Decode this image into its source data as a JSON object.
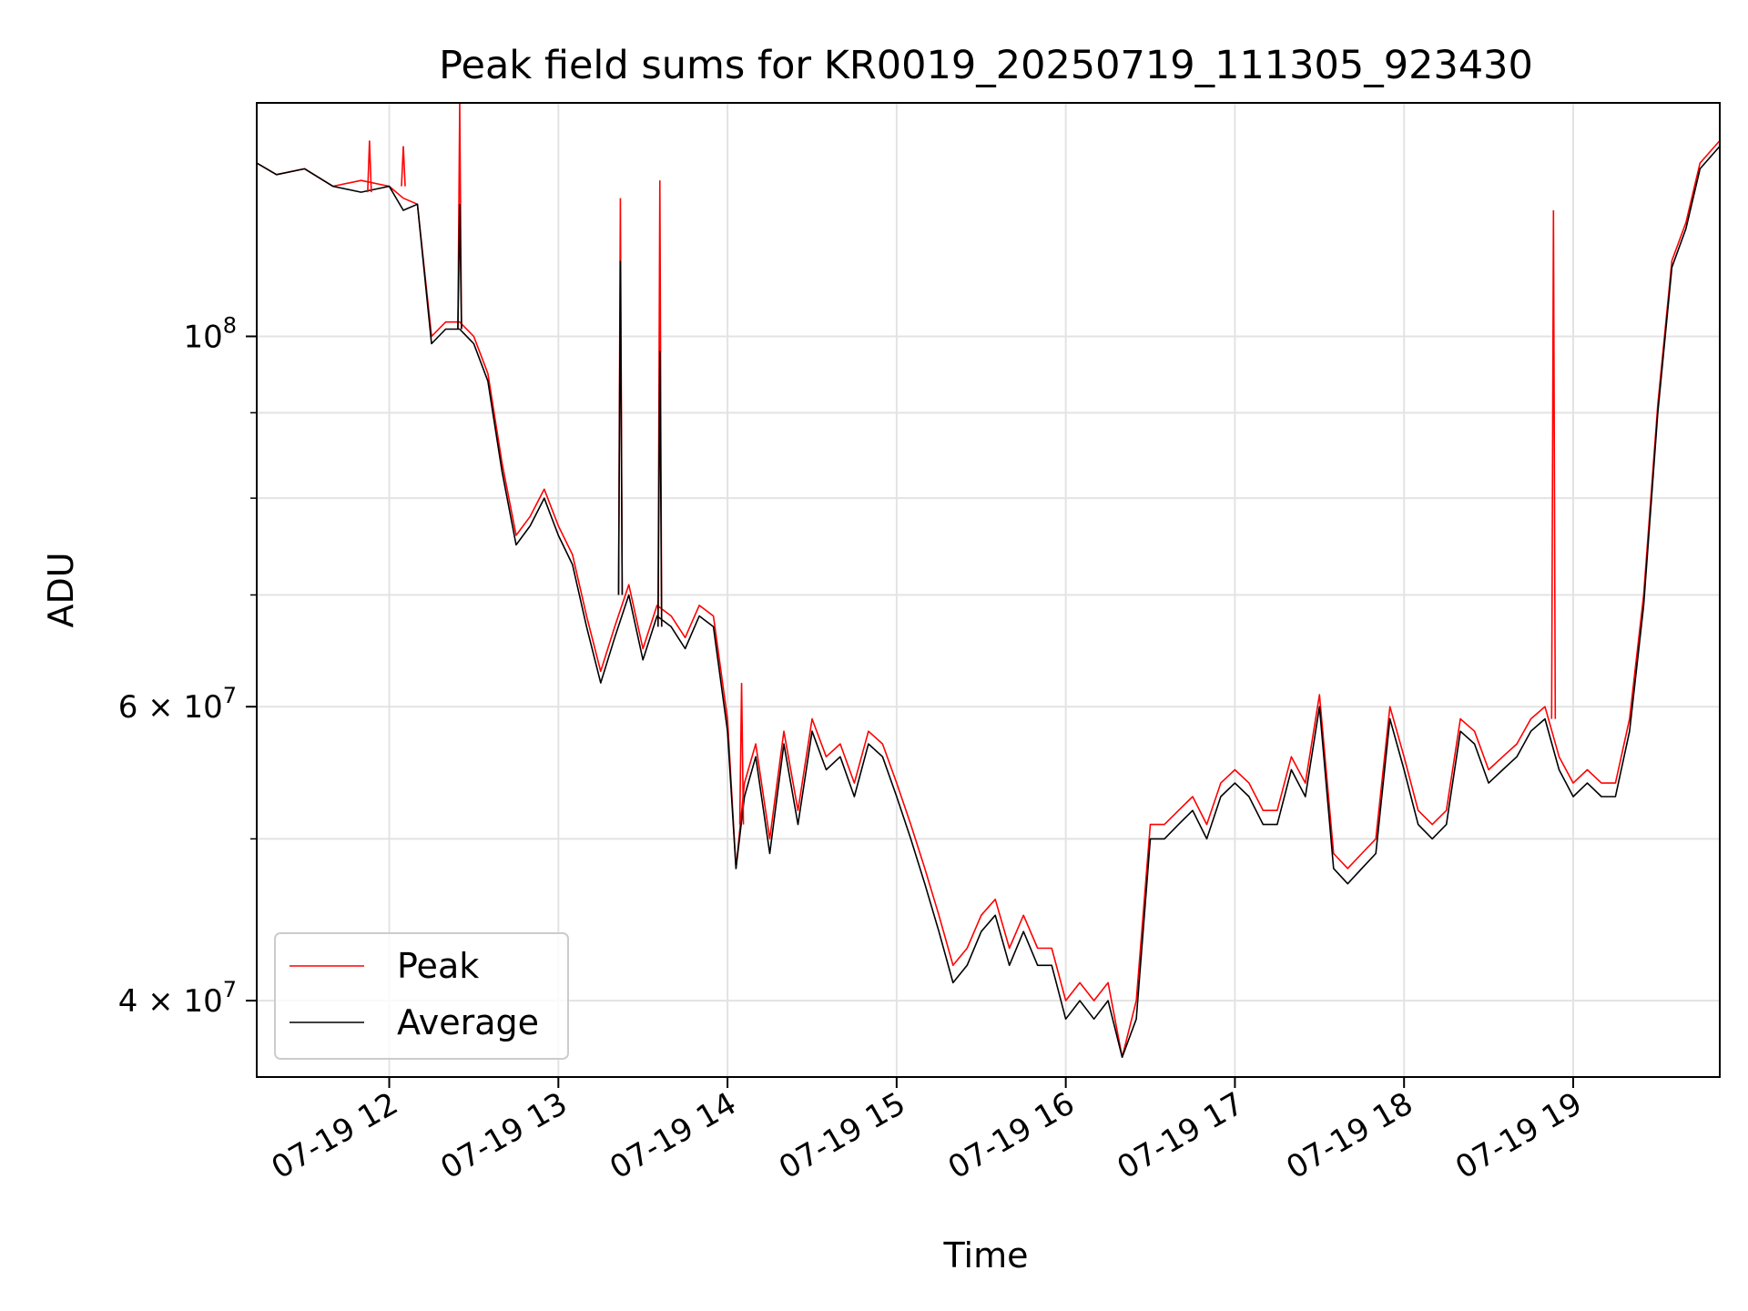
{
  "chart_data": {
    "type": "line",
    "title": "Peak field sums for KR0019_20250719_111305_923430",
    "xlabel": "Time",
    "ylabel": "ADU",
    "yscale": "log",
    "ylim": [
      36000000,
      138000000
    ],
    "xlim": [
      "07-19 11:13",
      "07-19 19:52"
    ],
    "grid": true,
    "legend_position": "lower-left",
    "x_ticks": [
      "07-19 12",
      "07-19 13",
      "07-19 14",
      "07-19 15",
      "07-19 16",
      "07-19 17",
      "07-19 18",
      "07-19 19"
    ],
    "y_ticks": [
      {
        "value": 100000000,
        "base": "10",
        "exp": "8"
      },
      {
        "value": 60000000,
        "base": "6 × 10",
        "exp": "7"
      },
      {
        "value": 40000000,
        "base": "4 × 10",
        "exp": "7"
      }
    ],
    "x": [
      "11:13",
      "11:20",
      "11:30",
      "11:40",
      "11:50",
      "12:00",
      "12:05",
      "12:10",
      "12:15",
      "12:20",
      "12:25",
      "12:30",
      "12:35",
      "12:40",
      "12:45",
      "12:50",
      "12:55",
      "13:00",
      "13:05",
      "13:10",
      "13:15",
      "13:20",
      "13:25",
      "13:30",
      "13:35",
      "13:40",
      "13:45",
      "13:50",
      "13:55",
      "14:00",
      "14:03",
      "14:06",
      "14:10",
      "14:15",
      "14:20",
      "14:25",
      "14:30",
      "14:35",
      "14:40",
      "14:45",
      "14:50",
      "14:55",
      "15:00",
      "15:05",
      "15:10",
      "15:15",
      "15:20",
      "15:25",
      "15:30",
      "15:35",
      "15:40",
      "15:45",
      "15:50",
      "15:55",
      "16:00",
      "16:05",
      "16:10",
      "16:15",
      "16:20",
      "16:25",
      "16:30",
      "16:35",
      "16:40",
      "16:45",
      "16:50",
      "16:55",
      "17:00",
      "17:05",
      "17:10",
      "17:15",
      "17:20",
      "17:25",
      "17:30",
      "17:35",
      "17:40",
      "17:45",
      "17:50",
      "17:55",
      "18:00",
      "18:05",
      "18:10",
      "18:15",
      "18:20",
      "18:25",
      "18:30",
      "18:35",
      "18:40",
      "18:45",
      "18:50",
      "18:55",
      "19:00",
      "19:05",
      "19:10",
      "19:15",
      "19:20",
      "19:25",
      "19:30",
      "19:35",
      "19:40",
      "19:45",
      "19:52"
    ],
    "series": [
      {
        "name": "Average",
        "color": "#000000",
        "values": [
          127000000,
          125000000,
          126000000,
          123000000,
          122000000,
          123000000,
          119000000,
          120000000,
          99000000,
          101000000,
          101000000,
          99000000,
          94000000,
          83000000,
          75000000,
          77000000,
          80000000,
          76000000,
          73000000,
          67000000,
          62000000,
          66000000,
          70000000,
          64000000,
          68000000,
          67000000,
          65000000,
          68000000,
          67000000,
          58000000,
          48000000,
          53000000,
          56000000,
          49000000,
          57000000,
          51000000,
          58000000,
          55000000,
          56000000,
          53000000,
          57000000,
          56000000,
          53000000,
          50000000,
          47000000,
          44000000,
          41000000,
          42000000,
          44000000,
          45000000,
          42000000,
          44000000,
          42000000,
          42000000,
          39000000,
          40000000,
          39000000,
          40000000,
          37000000,
          39000000,
          50000000,
          50000000,
          51000000,
          52000000,
          50000000,
          53000000,
          54000000,
          53000000,
          51000000,
          51000000,
          55000000,
          53000000,
          60000000,
          48000000,
          47000000,
          48000000,
          49000000,
          59000000,
          55000000,
          51000000,
          50000000,
          51000000,
          58000000,
          57000000,
          54000000,
          55000000,
          56000000,
          58000000,
          59000000,
          55000000,
          53000000,
          54000000,
          53000000,
          53000000,
          58000000,
          69000000,
          90000000,
          110000000,
          116000000,
          126000000,
          130000000
        ]
      },
      {
        "name": "Peak",
        "color": "#ff0000",
        "values": [
          127000000,
          125000000,
          126000000,
          123000000,
          124000000,
          123000000,
          121000000,
          120000000,
          100000000,
          102000000,
          102000000,
          100000000,
          95000000,
          84000000,
          76000000,
          78000000,
          81000000,
          77000000,
          74000000,
          68000000,
          63000000,
          67000000,
          71000000,
          65000000,
          69000000,
          68000000,
          66000000,
          69000000,
          68000000,
          59000000,
          48000000,
          54000000,
          57000000,
          50000000,
          58000000,
          52000000,
          59000000,
          56000000,
          57000000,
          54000000,
          58000000,
          57000000,
          54000000,
          51000000,
          48000000,
          45000000,
          42000000,
          43000000,
          45000000,
          46000000,
          43000000,
          45000000,
          43000000,
          43000000,
          40000000,
          41000000,
          40000000,
          41000000,
          37000000,
          40000000,
          51000000,
          51000000,
          52000000,
          53000000,
          51000000,
          54000000,
          55000000,
          54000000,
          52000000,
          52000000,
          56000000,
          54000000,
          61000000,
          49000000,
          48000000,
          49000000,
          50000000,
          60000000,
          56000000,
          52000000,
          51000000,
          52000000,
          59000000,
          58000000,
          55000000,
          56000000,
          57000000,
          59000000,
          60000000,
          56000000,
          54000000,
          55000000,
          54000000,
          54000000,
          59000000,
          70000000,
          91000000,
          111000000,
          117000000,
          127000000,
          131000000
        ]
      }
    ],
    "peak_spikes": [
      {
        "x": "11:53",
        "base": 122000000,
        "top": 131000000
      },
      {
        "x": "12:05",
        "base": 123000000,
        "top": 130000000
      },
      {
        "x": "12:25",
        "base": 101000000,
        "top": 140000000
      },
      {
        "x": "13:22",
        "base": 70000000,
        "top": 121000000
      },
      {
        "x": "13:36",
        "base": 67000000,
        "top": 124000000
      },
      {
        "x": "14:05",
        "base": 51000000,
        "top": 62000000
      },
      {
        "x": "18:53",
        "base": 59000000,
        "top": 119000000
      }
    ],
    "average_spikes": [
      {
        "x": "12:25",
        "base": 101000000,
        "top": 120000000
      },
      {
        "x": "13:22",
        "base": 70000000,
        "top": 111000000
      },
      {
        "x": "13:36",
        "base": 67000000,
        "top": 98000000
      }
    ]
  }
}
